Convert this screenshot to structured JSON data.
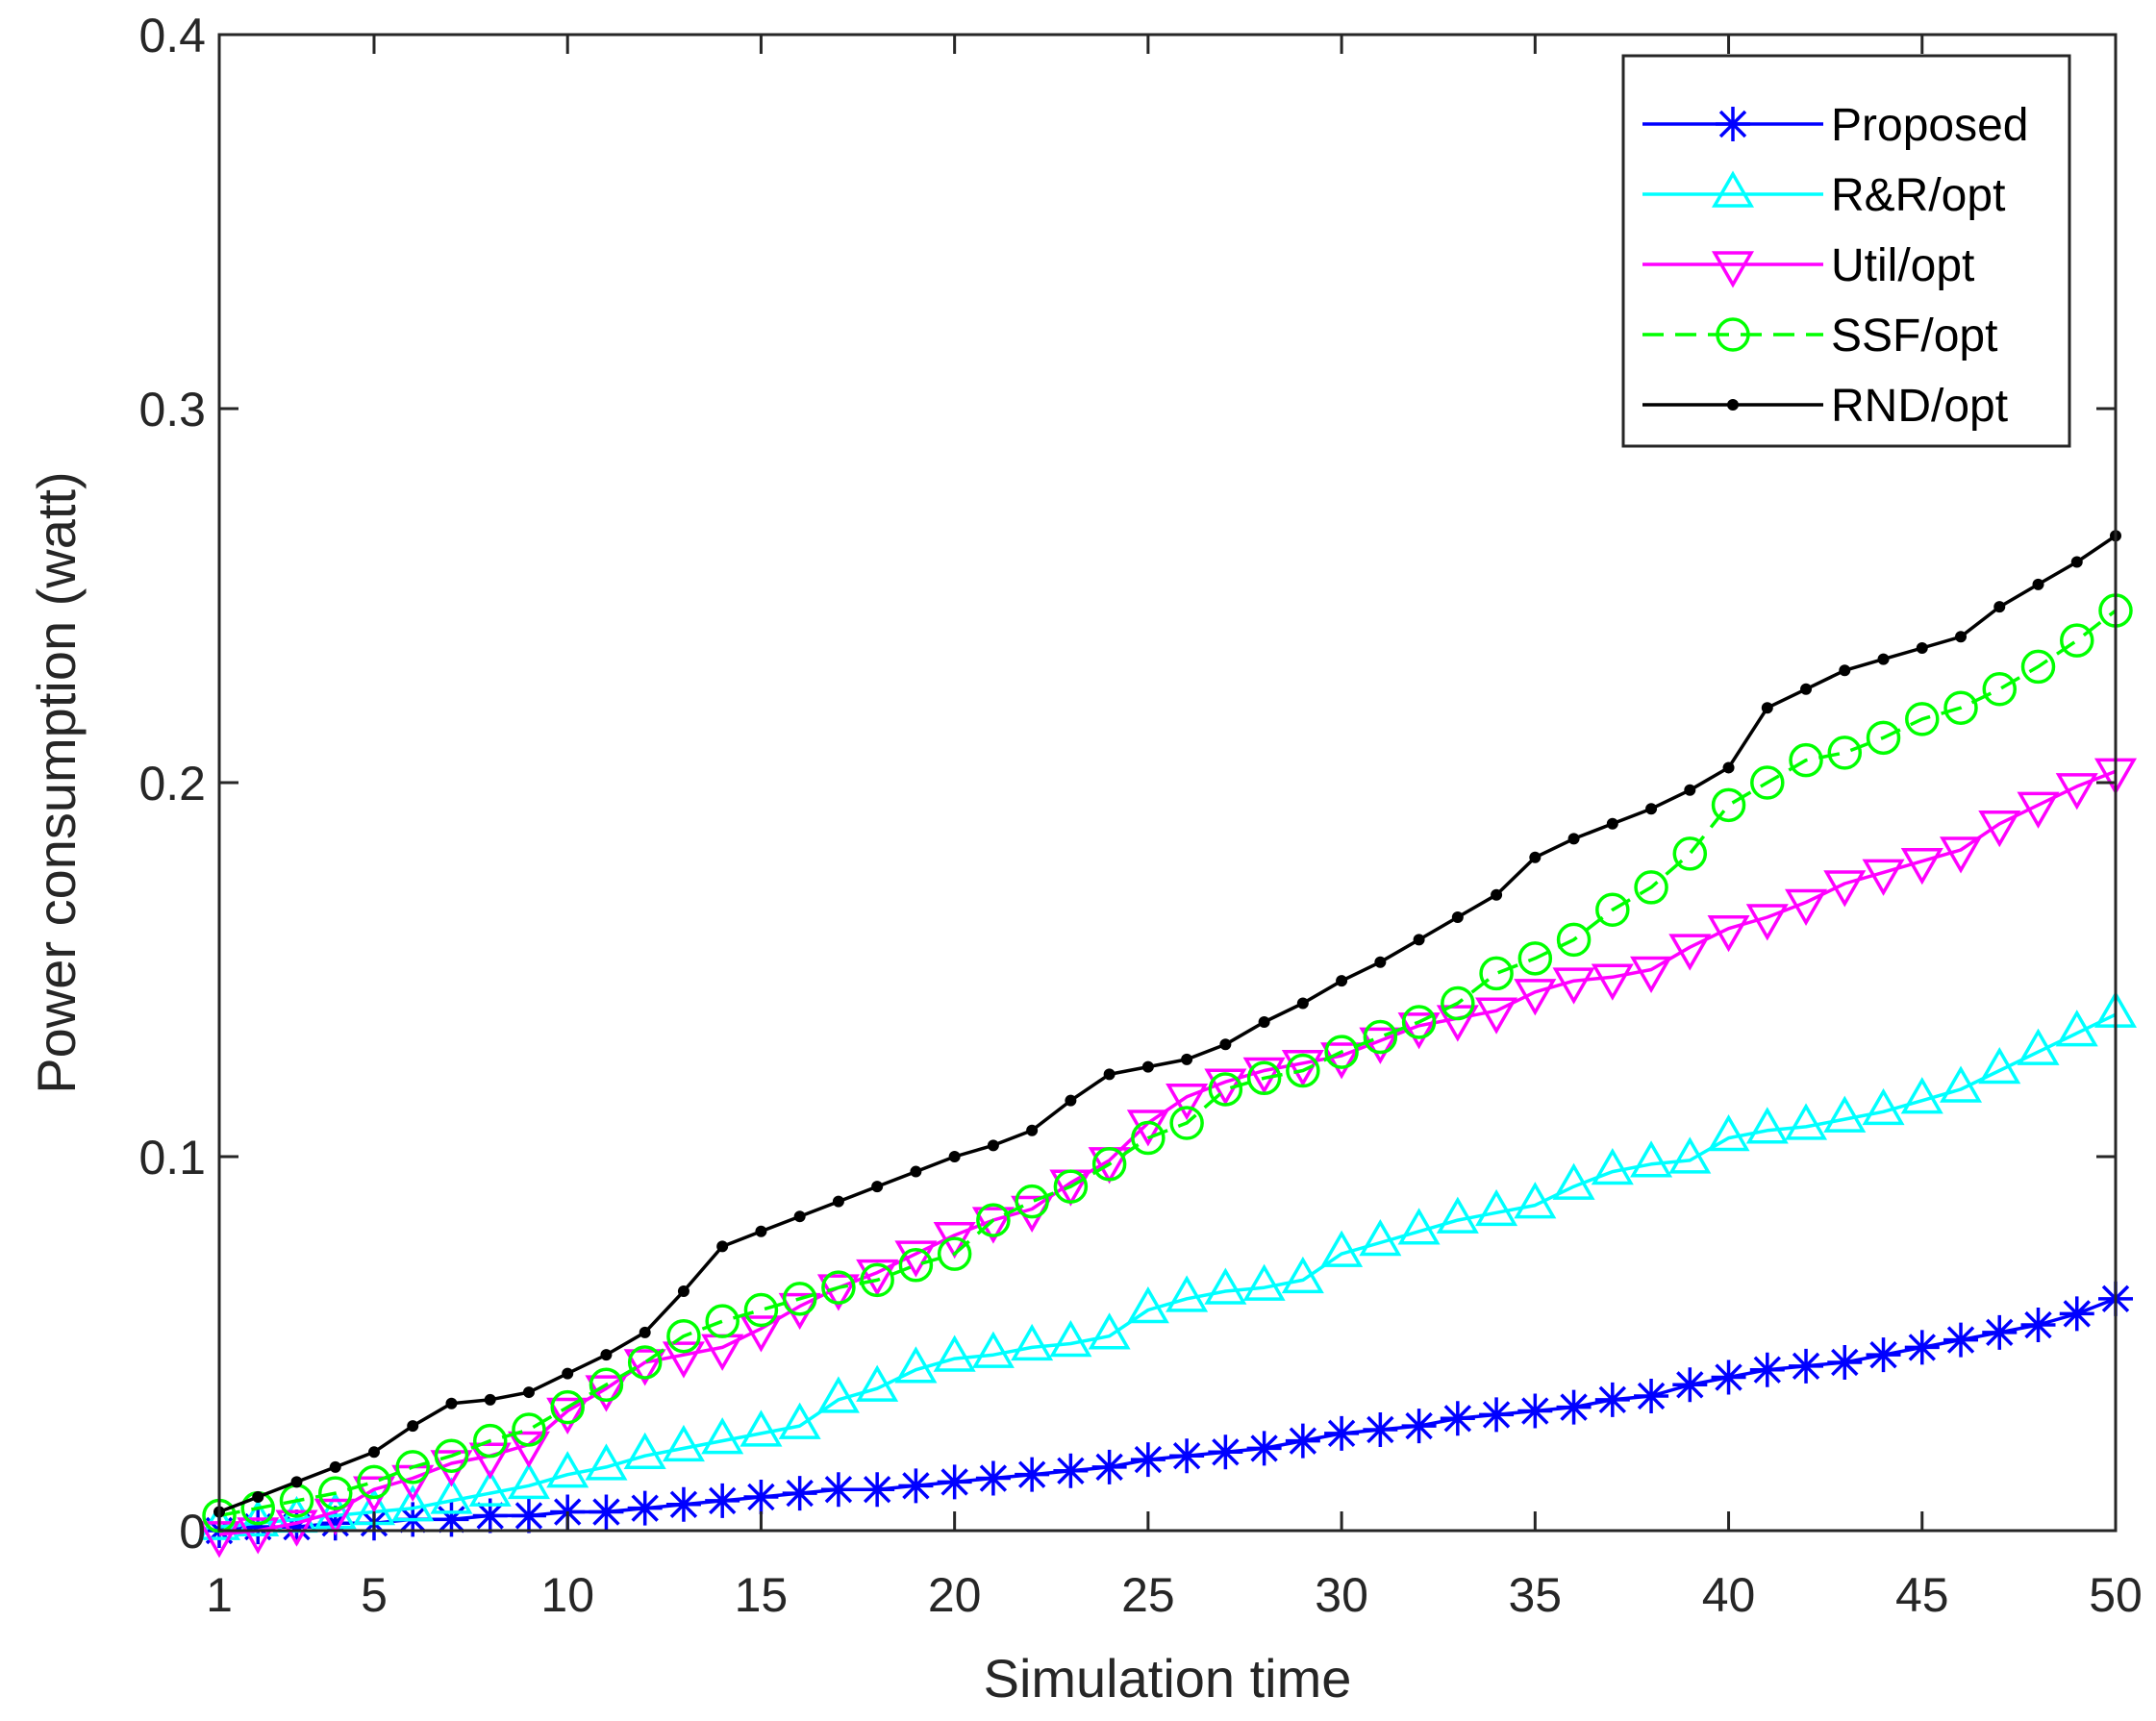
{
  "chart_data": {
    "type": "line",
    "xlabel": "Simulation time",
    "ylabel": "Power consumption (watt)",
    "xlim": [
      1,
      50
    ],
    "ylim": [
      0,
      0.4
    ],
    "xticks": [
      1,
      5,
      10,
      15,
      20,
      25,
      30,
      35,
      40,
      45,
      50
    ],
    "xtick_labels": [
      "1",
      "5",
      "10",
      "15",
      "20",
      "25",
      "30",
      "35",
      "40",
      "45",
      "50"
    ],
    "yticks": [
      0,
      0.1,
      0.2,
      0.3,
      0.4
    ],
    "ytick_labels": [
      "0",
      "0.1",
      "0.2",
      "0.3",
      "0.4"
    ],
    "grid": false,
    "legend_position": "top-right",
    "x": [
      1,
      2,
      3,
      4,
      5,
      6,
      7,
      8,
      9,
      10,
      11,
      12,
      13,
      14,
      15,
      16,
      17,
      18,
      19,
      20,
      21,
      22,
      23,
      24,
      25,
      26,
      27,
      28,
      29,
      30,
      31,
      32,
      33,
      34,
      35,
      36,
      37,
      38,
      39,
      40,
      41,
      42,
      43,
      44,
      45,
      46,
      47,
      48,
      49,
      50
    ],
    "series": [
      {
        "name": "Proposed",
        "color": "#0000ff",
        "marker": "asterisk",
        "dash": "solid",
        "values": [
          0.0,
          0.001,
          0.001,
          0.002,
          0.002,
          0.003,
          0.003,
          0.004,
          0.004,
          0.005,
          0.005,
          0.006,
          0.007,
          0.008,
          0.009,
          0.01,
          0.011,
          0.011,
          0.012,
          0.013,
          0.014,
          0.015,
          0.016,
          0.017,
          0.019,
          0.02,
          0.021,
          0.022,
          0.024,
          0.026,
          0.027,
          0.028,
          0.03,
          0.031,
          0.032,
          0.033,
          0.035,
          0.036,
          0.039,
          0.041,
          0.043,
          0.044,
          0.045,
          0.047,
          0.049,
          0.051,
          0.053,
          0.055,
          0.058,
          0.062
        ]
      },
      {
        "name": "R&R/opt",
        "color": "#00ffff",
        "marker": "triangle-up",
        "dash": "solid",
        "values": [
          0.001,
          0.002,
          0.003,
          0.004,
          0.005,
          0.006,
          0.008,
          0.01,
          0.012,
          0.015,
          0.017,
          0.02,
          0.022,
          0.024,
          0.026,
          0.028,
          0.035,
          0.038,
          0.043,
          0.046,
          0.047,
          0.049,
          0.05,
          0.052,
          0.059,
          0.062,
          0.064,
          0.065,
          0.067,
          0.074,
          0.077,
          0.08,
          0.083,
          0.085,
          0.087,
          0.092,
          0.096,
          0.098,
          0.099,
          0.105,
          0.107,
          0.108,
          0.11,
          0.112,
          0.115,
          0.118,
          0.123,
          0.128,
          0.133,
          0.138
        ]
      },
      {
        "name": "Util/opt",
        "color": "#ff00ff",
        "marker": "triangle-down",
        "dash": "solid",
        "values": [
          -0.001,
          0.0,
          0.002,
          0.005,
          0.011,
          0.014,
          0.018,
          0.02,
          0.023,
          0.032,
          0.038,
          0.045,
          0.047,
          0.049,
          0.054,
          0.06,
          0.065,
          0.069,
          0.074,
          0.079,
          0.083,
          0.086,
          0.093,
          0.099,
          0.109,
          0.116,
          0.12,
          0.123,
          0.125,
          0.127,
          0.131,
          0.135,
          0.137,
          0.139,
          0.144,
          0.147,
          0.148,
          0.15,
          0.156,
          0.161,
          0.164,
          0.168,
          0.173,
          0.176,
          0.179,
          0.182,
          0.189,
          0.194,
          0.199,
          0.203
        ]
      },
      {
        "name": "SSF/opt",
        "color": "#00ff00",
        "marker": "circle",
        "dash": "dashed",
        "values": [
          0.004,
          0.006,
          0.008,
          0.01,
          0.013,
          0.017,
          0.02,
          0.024,
          0.027,
          0.033,
          0.039,
          0.045,
          0.052,
          0.056,
          0.059,
          0.062,
          0.065,
          0.067,
          0.071,
          0.074,
          0.083,
          0.088,
          0.092,
          0.098,
          0.105,
          0.109,
          0.118,
          0.121,
          0.123,
          0.128,
          0.132,
          0.136,
          0.141,
          0.149,
          0.153,
          0.158,
          0.166,
          0.172,
          0.181,
          0.194,
          0.2,
          0.206,
          0.208,
          0.212,
          0.217,
          0.22,
          0.225,
          0.231,
          0.238,
          0.246
        ]
      },
      {
        "name": "RND/opt",
        "color": "#000000",
        "marker": "dot",
        "dash": "solid",
        "values": [
          0.005,
          0.009,
          0.013,
          0.017,
          0.021,
          0.028,
          0.034,
          0.035,
          0.037,
          0.042,
          0.047,
          0.053,
          0.064,
          0.076,
          0.08,
          0.084,
          0.088,
          0.092,
          0.096,
          0.1,
          0.103,
          0.107,
          0.115,
          0.122,
          0.124,
          0.126,
          0.13,
          0.136,
          0.141,
          0.147,
          0.152,
          0.158,
          0.164,
          0.17,
          0.18,
          0.185,
          0.189,
          0.193,
          0.198,
          0.204,
          0.22,
          0.225,
          0.23,
          0.233,
          0.236,
          0.239,
          0.247,
          0.253,
          0.259,
          0.266
        ]
      }
    ]
  }
}
